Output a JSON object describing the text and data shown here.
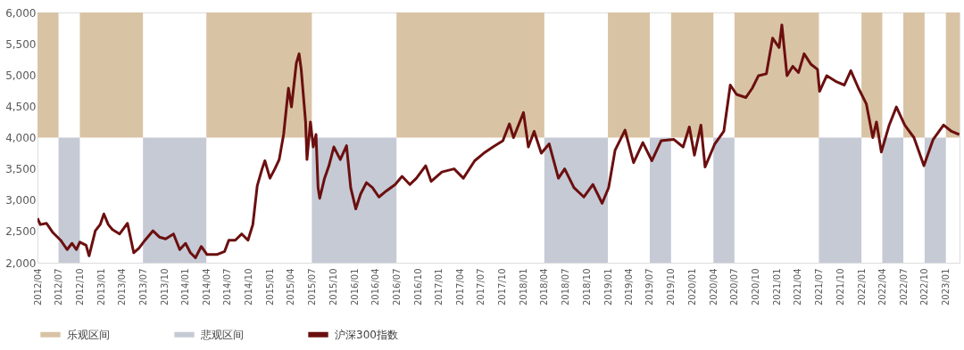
{
  "chart_data": {
    "type": "line",
    "x": [
      "2012-04-01",
      "2012-04-13",
      "2012-05-10",
      "2012-06-07",
      "2012-07-10",
      "2012-08-07",
      "2012-08-28",
      "2012-09-16",
      "2012-10-01",
      "2012-10-28",
      "2012-11-10",
      "2012-12-07",
      "2012-12-28",
      "2013-01-13",
      "2013-02-01",
      "2013-02-19",
      "2013-03-22",
      "2013-04-25",
      "2013-05-22",
      "2013-06-13",
      "2013-07-10",
      "2013-08-13",
      "2013-09-10",
      "2013-10-07",
      "2013-11-10",
      "2013-12-07",
      "2014-01-01",
      "2014-01-22",
      "2014-02-13",
      "2014-03-10",
      "2014-04-04",
      "2014-05-16",
      "2014-06-19",
      "2014-07-07",
      "2014-08-04",
      "2014-09-01",
      "2014-09-28",
      "2014-10-19",
      "2014-11-07",
      "2014-11-28",
      "2014-12-10",
      "2015-01-01",
      "2015-01-22",
      "2015-02-10",
      "2015-03-01",
      "2015-03-22",
      "2015-04-04",
      "2015-04-25",
      "2015-05-07",
      "2015-05-16",
      "2015-06-04",
      "2015-06-10",
      "2015-06-25",
      "2015-07-07",
      "2015-07-19",
      "2015-07-28",
      "2015-08-04",
      "2015-08-25",
      "2015-09-13",
      "2015-10-04",
      "2015-11-01",
      "2015-11-28",
      "2015-12-16",
      "2016-01-07",
      "2016-01-28",
      "2016-02-22",
      "2016-03-19",
      "2016-04-16",
      "2016-05-19",
      "2016-06-25",
      "2016-07-25",
      "2016-08-28",
      "2016-09-25",
      "2016-11-04",
      "2016-11-28",
      "2017-01-13",
      "2017-03-07",
      "2017-04-16",
      "2017-06-04",
      "2017-07-13",
      "2017-08-22",
      "2017-10-04",
      "2017-11-01",
      "2017-11-19",
      "2018-01-01",
      "2018-01-22",
      "2018-02-16",
      "2018-03-19",
      "2018-04-22",
      "2018-06-01",
      "2018-06-28",
      "2018-08-07",
      "2018-09-19",
      "2018-10-28",
      "2018-12-07",
      "2019-01-04",
      "2019-02-01",
      "2019-03-16",
      "2019-04-22",
      "2019-06-01",
      "2019-07-10",
      "2019-08-19",
      "2019-10-13",
      "2019-11-22",
      "2019-12-19",
      "2020-01-10",
      "2020-02-07",
      "2020-02-25",
      "2020-04-07",
      "2020-05-16",
      "2020-06-13",
      "2020-07-10",
      "2020-08-19",
      "2020-09-16",
      "2020-10-13",
      "2020-11-16",
      "2020-12-13",
      "2021-01-10",
      "2021-01-22",
      "2021-02-13",
      "2021-03-10",
      "2021-04-04",
      "2021-04-28",
      "2021-05-28",
      "2021-06-25",
      "2021-07-04",
      "2021-08-04",
      "2021-09-16",
      "2021-10-19",
      "2021-11-16",
      "2021-12-19",
      "2022-01-22",
      "2022-02-19",
      "2022-03-07",
      "2022-03-28",
      "2022-05-01",
      "2022-06-01",
      "2022-07-07",
      "2022-08-16",
      "2022-09-28",
      "2022-11-07",
      "2022-12-22",
      "2023-01-25",
      "2023-02-28"
    ],
    "series": [
      {
        "name": "沪深300指数",
        "color": "#6b0f0f",
        "values": [
          2710,
          2610,
          2630,
          2480,
          2360,
          2210,
          2310,
          2210,
          2330,
          2280,
          2110,
          2510,
          2610,
          2780,
          2610,
          2530,
          2460,
          2630,
          2160,
          2230,
          2360,
          2510,
          2410,
          2380,
          2460,
          2210,
          2310,
          2160,
          2080,
          2260,
          2130,
          2130,
          2180,
          2360,
          2360,
          2460,
          2360,
          2610,
          3230,
          3500,
          3630,
          3350,
          3500,
          3650,
          4050,
          4790,
          4490,
          5190,
          5340,
          5090,
          4250,
          3650,
          4250,
          3850,
          4050,
          3200,
          3030,
          3350,
          3550,
          3850,
          3650,
          3870,
          3200,
          2860,
          3100,
          3280,
          3200,
          3050,
          3150,
          3250,
          3380,
          3250,
          3350,
          3550,
          3300,
          3450,
          3500,
          3350,
          3630,
          3750,
          3850,
          3950,
          4220,
          4000,
          4400,
          3850,
          4100,
          3750,
          3900,
          3350,
          3500,
          3200,
          3050,
          3250,
          2950,
          3200,
          3800,
          4120,
          3600,
          3920,
          3630,
          3950,
          3970,
          3850,
          4170,
          3720,
          4200,
          3530,
          3900,
          4100,
          4840,
          4690,
          4640,
          4790,
          4990,
          5020,
          5590,
          5440,
          5800,
          4990,
          5140,
          5040,
          5340,
          5170,
          5090,
          4740,
          4990,
          4890,
          4840,
          5070,
          4790,
          4540,
          4000,
          4250,
          3770,
          4200,
          4490,
          4200,
          4000,
          3550,
          3970,
          4200,
          4100,
          4050
        ]
      }
    ],
    "bands": [
      {
        "axis": "x",
        "from": "2012-04-01",
        "to": "2012-07-01",
        "label": "乐观区间",
        "color": "#d9c3a5"
      },
      {
        "axis": "x",
        "from": "2012-07-01",
        "to": "2012-10-01",
        "label": "悲观区间",
        "color": "#c5cad5"
      },
      {
        "axis": "x",
        "from": "2012-10-01",
        "to": "2013-07-01",
        "color": "#d9c3a5"
      },
      {
        "axis": "x",
        "from": "2013-07-01",
        "to": "2014-04-01",
        "color": "#c5cad5"
      },
      {
        "axis": "x",
        "from": "2014-04-01",
        "to": "2015-07-01",
        "color": "#d9c3a5"
      },
      {
        "axis": "x",
        "from": "2015-07-01",
        "to": "2016-07-01",
        "color": "#c5cad5"
      },
      {
        "axis": "x",
        "from": "2016-07-01",
        "to": "2018-04-01",
        "color": "#d9c3a5"
      },
      {
        "axis": "x",
        "from": "2018-04-01",
        "to": "2019-01-01",
        "color": "#c5cad5"
      },
      {
        "axis": "x",
        "from": "2019-01-01",
        "to": "2019-07-01",
        "color": "#d9c3a5"
      },
      {
        "axis": "x",
        "from": "2019-07-01",
        "to": "2019-10-01",
        "color": "#c5cad5"
      },
      {
        "axis": "x",
        "from": "2019-10-01",
        "to": "2020-04-01",
        "color": "#d9c3a5"
      },
      {
        "axis": "x",
        "from": "2020-04-01",
        "to": "2020-07-01",
        "color": "#c5cad5"
      },
      {
        "axis": "x",
        "from": "2020-07-01",
        "to": "2021-07-01",
        "color": "#d9c3a5"
      },
      {
        "axis": "x",
        "from": "2021-07-01",
        "to": "2022-01-01",
        "color": "#c5cad5"
      },
      {
        "axis": "x",
        "from": "2022-01-01",
        "to": "2022-04-01",
        "color": "#d9c3a5"
      },
      {
        "axis": "x",
        "from": "2022-04-01",
        "to": "2022-07-01",
        "color": "#c5cad5"
      },
      {
        "axis": "x",
        "from": "2022-07-01",
        "to": "2022-10-01",
        "color": "#d9c3a5"
      },
      {
        "axis": "x",
        "from": "2022-10-01",
        "to": "2023-01-01",
        "color": "#c5cad5"
      },
      {
        "axis": "x",
        "from": "2023-01-01",
        "to": "2023-03-01",
        "color": "#d9c3a5"
      }
    ],
    "xlim": [
      "2012-04-01",
      "2023-03-01"
    ],
    "xticks": [
      {
        "value": "2012-04",
        "label": "2012/04"
      },
      {
        "value": "2012-07",
        "label": "2012/07"
      },
      {
        "value": "2012-10",
        "label": "2012/10"
      },
      {
        "value": "2013-01",
        "label": "2013/01"
      },
      {
        "value": "2013-04",
        "label": "2013/04"
      },
      {
        "value": "2013-07",
        "label": "2013/07"
      },
      {
        "value": "2013-10",
        "label": "2013/10"
      },
      {
        "value": "2014-01",
        "label": "2014/01"
      },
      {
        "value": "2014-04",
        "label": "2014/04"
      },
      {
        "value": "2014-07",
        "label": "2014/07"
      },
      {
        "value": "2014-10",
        "label": "2014/10"
      },
      {
        "value": "2015-01",
        "label": "2015/01"
      },
      {
        "value": "2015-04",
        "label": "2015/04"
      },
      {
        "value": "2015-07",
        "label": "2015/07"
      },
      {
        "value": "2015-10",
        "label": "2015/10"
      },
      {
        "value": "2016-01",
        "label": "2016/01"
      },
      {
        "value": "2016-04",
        "label": "2016/04"
      },
      {
        "value": "2016-07",
        "label": "2016/07"
      },
      {
        "value": "2016-10",
        "label": "2016/10"
      },
      {
        "value": "2017-01",
        "label": "2017/01"
      },
      {
        "value": "2017-04",
        "label": "2017/04"
      },
      {
        "value": "2017-07",
        "label": "2017/07"
      },
      {
        "value": "2017-10",
        "label": "2017/10"
      },
      {
        "value": "2018-01",
        "label": "2018/01"
      },
      {
        "value": "2018-04",
        "label": "2018/04"
      },
      {
        "value": "2018-07",
        "label": "2018/07"
      },
      {
        "value": "2018-10",
        "label": "2018/10"
      },
      {
        "value": "2019-01",
        "label": "2019/01"
      },
      {
        "value": "2019-04",
        "label": "2019/04"
      },
      {
        "value": "2019-07",
        "label": "2019/07"
      },
      {
        "value": "2019-10",
        "label": "2019/10"
      },
      {
        "value": "2020-01",
        "label": "2020/01"
      },
      {
        "value": "2020-04",
        "label": "2020/04"
      },
      {
        "value": "2020-07",
        "label": "2020/07"
      },
      {
        "value": "2020-10",
        "label": "2020/10"
      },
      {
        "value": "2021-01",
        "label": "2021/01"
      },
      {
        "value": "2021-04",
        "label": "2021/04"
      },
      {
        "value": "2021-07",
        "label": "2021/07"
      },
      {
        "value": "2021-10",
        "label": "2021/10"
      },
      {
        "value": "2022-01",
        "label": "2022/01"
      },
      {
        "value": "2022-04",
        "label": "2022/04"
      },
      {
        "value": "2022-07",
        "label": "2022/07"
      },
      {
        "value": "2022-10",
        "label": "2022/10"
      },
      {
        "value": "2023-01",
        "label": "2023/01"
      }
    ],
    "ylim": [
      2000,
      6000
    ],
    "yticks": [
      {
        "value": 2000,
        "label": "2,000"
      },
      {
        "value": 2500,
        "label": "2,500"
      },
      {
        "value": 3000,
        "label": "3,000"
      },
      {
        "value": 3500,
        "label": "3,500"
      },
      {
        "value": 4000,
        "label": "4,000"
      },
      {
        "value": 4500,
        "label": "4,500"
      },
      {
        "value": 5000,
        "label": "5,000"
      },
      {
        "value": 5500,
        "label": "5,500"
      },
      {
        "value": 6000,
        "label": "6,000"
      }
    ],
    "grid": false,
    "legend": "bottom",
    "marker": "none",
    "line_style": "solid"
  }
}
